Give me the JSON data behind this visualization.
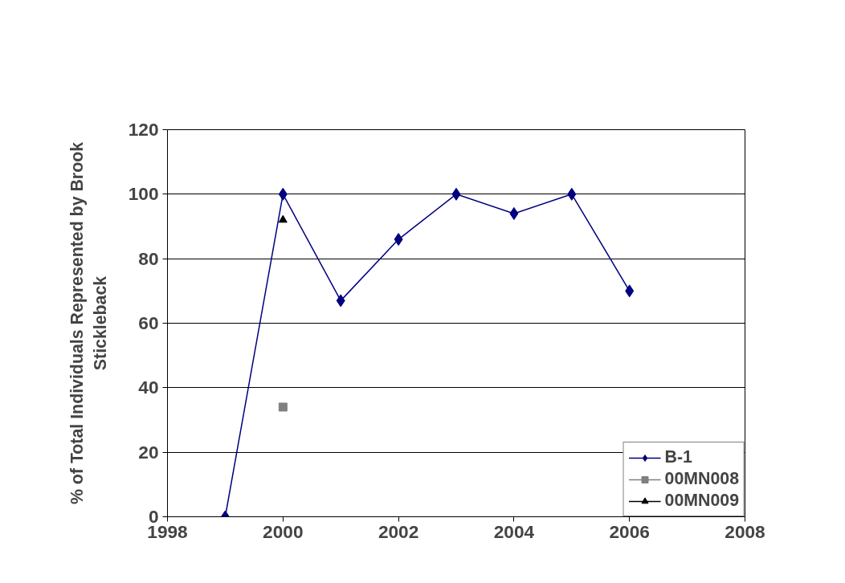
{
  "chart_data": {
    "type": "line",
    "ylabel": "% of Total Individuals Represented by Brook Stickleback",
    "x": [
      1999,
      2000,
      2001,
      2002,
      2003,
      2004,
      2005,
      2006
    ],
    "series": [
      {
        "name": "B-1",
        "color": "#000080",
        "marker": "diamond",
        "values": [
          0,
          100,
          67,
          86,
          100,
          94,
          100,
          70
        ]
      },
      {
        "name": "00MN008",
        "color": "#808080",
        "marker": "square",
        "x": [
          2000
        ],
        "values": [
          34
        ]
      },
      {
        "name": "00MN009",
        "color": "#000000",
        "marker": "triangle",
        "x": [
          2000
        ],
        "values": [
          92
        ]
      }
    ],
    "xlim": [
      1998,
      2008
    ],
    "xticks": [
      1998,
      2000,
      2002,
      2004,
      2006,
      2008
    ],
    "ylim": [
      0,
      120
    ],
    "yticks": [
      0,
      20,
      40,
      60,
      80,
      100,
      120
    ],
    "grid": "y",
    "legend": "bottom right",
    "line_style": "solid"
  }
}
